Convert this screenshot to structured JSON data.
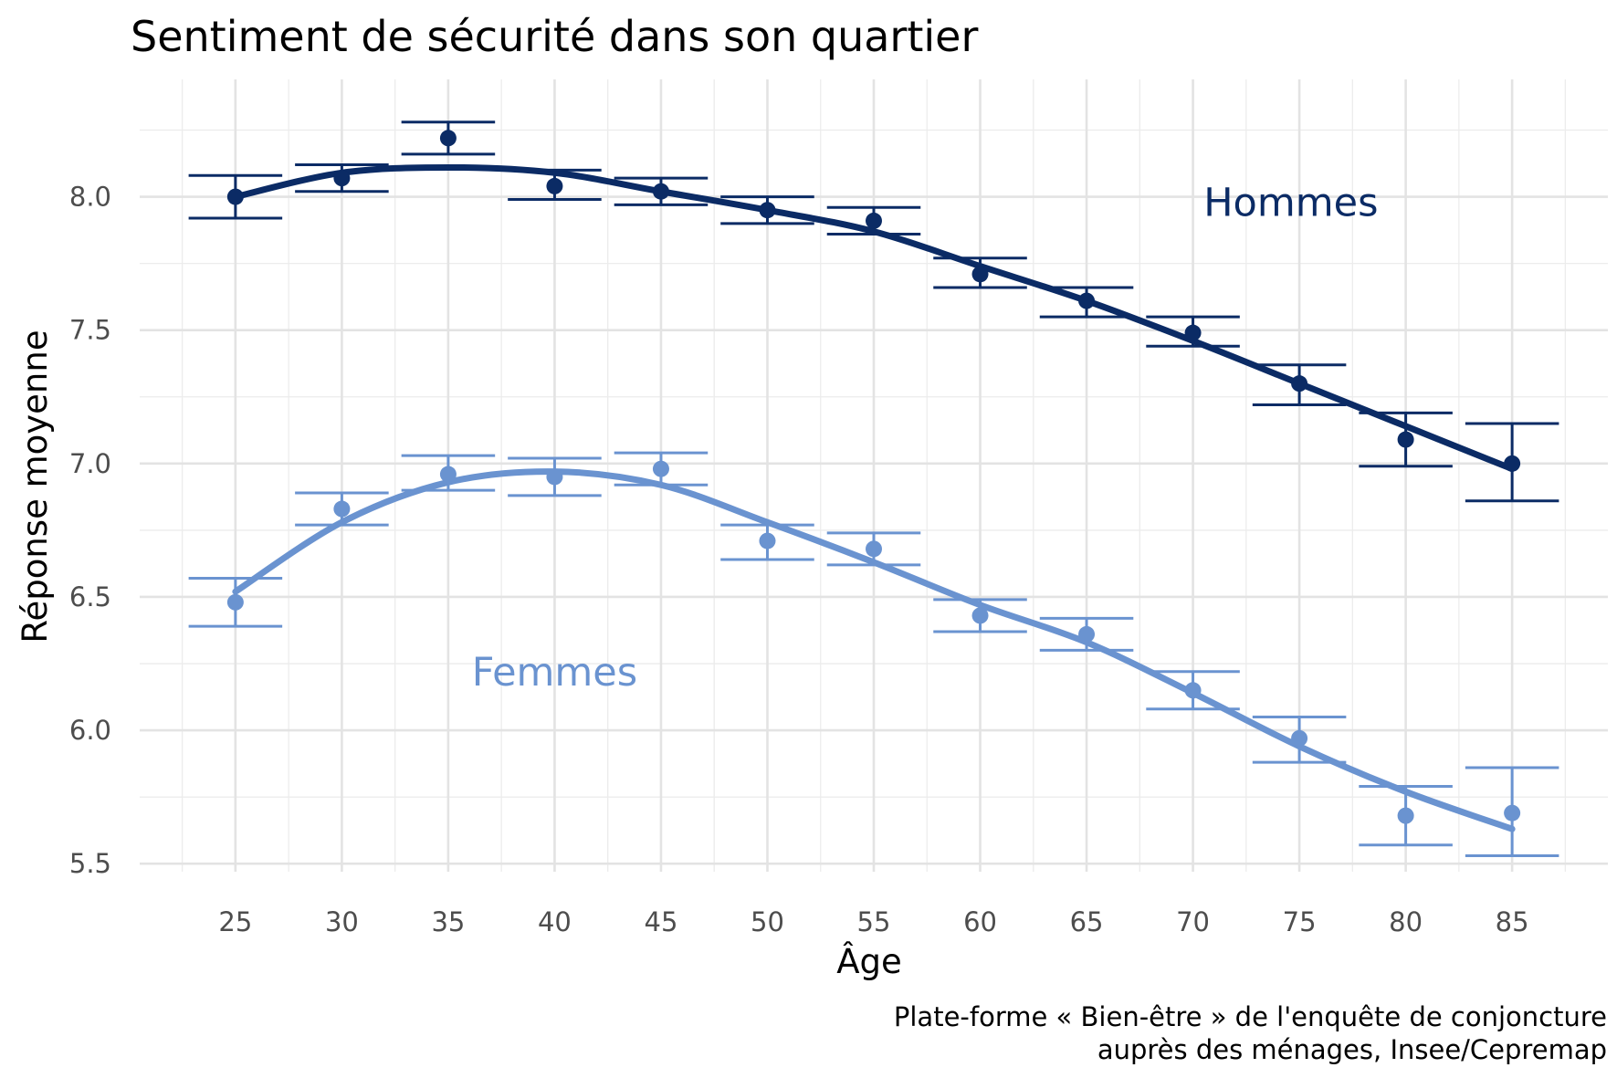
{
  "chart_data": {
    "type": "line",
    "title": "Sentiment de sécurité dans son quartier",
    "xlabel": "Âge",
    "ylabel": "Réponse moyenne",
    "caption_lines": [
      "Plate-forme « Bien-être » de l'enquête de conjoncture",
      "auprès des ménages, Insee/Cepremap"
    ],
    "xlim": [
      20.5,
      89.5
    ],
    "ylim": [
      5.47,
      8.44
    ],
    "x_ticks": [
      25,
      30,
      35,
      40,
      45,
      50,
      55,
      60,
      65,
      70,
      75,
      80,
      85
    ],
    "x_tick_labels": [
      "25",
      "30",
      "35",
      "40",
      "45",
      "50",
      "55",
      "60",
      "65",
      "70",
      "75",
      "80",
      "85"
    ],
    "y_ticks": [
      5.5,
      6.0,
      6.5,
      7.0,
      7.5,
      8.0
    ],
    "y_tick_labels": [
      "5.5",
      "6.0",
      "6.5",
      "7.0",
      "7.5",
      "8.0"
    ],
    "grid": true,
    "legend": "none (direct labels on plot)",
    "x": [
      25,
      30,
      35,
      40,
      45,
      50,
      55,
      60,
      65,
      70,
      75,
      80,
      85
    ],
    "series": [
      {
        "name": "Hommes",
        "color": "#0b2b65",
        "values": [
          8.0,
          8.07,
          8.22,
          8.04,
          8.02,
          7.95,
          7.91,
          7.71,
          7.61,
          7.49,
          7.3,
          7.09,
          7.0
        ],
        "err_low": [
          7.92,
          8.02,
          8.16,
          7.99,
          7.97,
          7.9,
          7.86,
          7.66,
          7.55,
          7.44,
          7.22,
          6.99,
          6.86
        ],
        "err_high": [
          8.08,
          8.12,
          8.28,
          8.1,
          8.07,
          8.0,
          7.96,
          7.77,
          7.66,
          7.55,
          7.37,
          7.19,
          7.15
        ],
        "fit": [
          8.0,
          8.09,
          8.11,
          8.09,
          8.02,
          7.95,
          7.87,
          7.74,
          7.61,
          7.46,
          7.3,
          7.14,
          6.98
        ],
        "label_x": 70.5,
        "label_y": 7.98
      },
      {
        "name": "Femmes",
        "color": "#6a93d0",
        "values": [
          6.48,
          6.83,
          6.96,
          6.95,
          6.98,
          6.71,
          6.68,
          6.43,
          6.36,
          6.15,
          5.97,
          5.68,
          5.69
        ],
        "err_low": [
          6.39,
          6.77,
          6.9,
          6.88,
          6.92,
          6.64,
          6.62,
          6.37,
          6.3,
          6.08,
          5.88,
          5.57,
          5.53
        ],
        "err_high": [
          6.57,
          6.89,
          7.03,
          7.02,
          7.04,
          6.77,
          6.74,
          6.49,
          6.42,
          6.22,
          6.05,
          5.79,
          5.86
        ],
        "fit": [
          6.52,
          6.78,
          6.93,
          6.97,
          6.92,
          6.78,
          6.63,
          6.47,
          6.33,
          6.14,
          5.94,
          5.77,
          5.63
        ],
        "label_x": 40,
        "label_y": 6.22
      }
    ]
  }
}
